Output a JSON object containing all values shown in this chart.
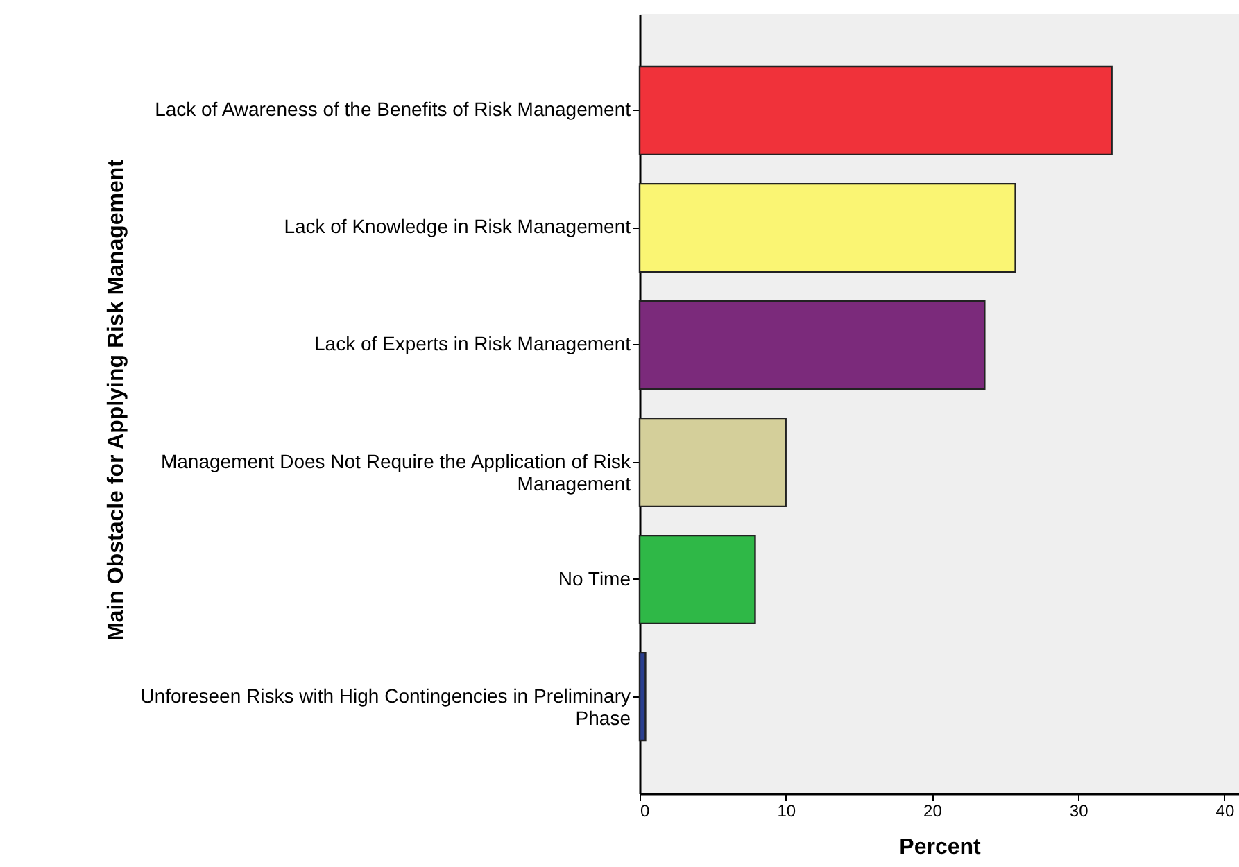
{
  "chart_data": {
    "type": "bar",
    "orientation": "horizontal",
    "xlabel": "Percent",
    "ylabel": "Main Obstacle for Applying Risk Management",
    "categories": [
      "Lack of Awareness of the Benefits of Risk Management",
      "Lack of Knowledge in Risk Management",
      "Lack of Experts in Risk Management",
      "Management Does Not Require the Application of Risk\nManagement",
      "No Time",
      "Unforeseen Risks with High Contingencies in Preliminary\nPhase"
    ],
    "values": [
      32.3,
      25.7,
      23.6,
      10.0,
      7.9,
      0.4
    ],
    "colors": [
      "#f0323a",
      "#faf573",
      "#7b2a7b",
      "#d4cf9a",
      "#2fb847",
      "#2a3f8f"
    ],
    "xlim": [
      0,
      41
    ],
    "xticks": [
      0,
      10,
      20,
      30,
      40
    ],
    "grid": false
  }
}
